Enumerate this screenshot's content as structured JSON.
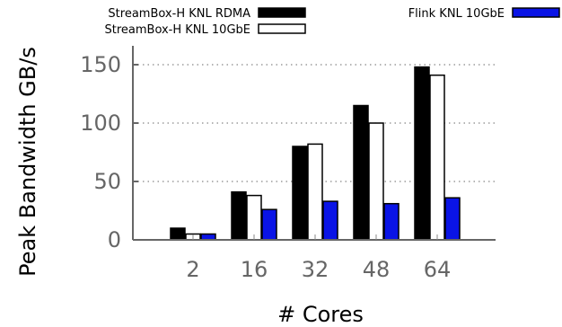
{
  "chart_data": {
    "type": "bar",
    "categories": [
      "2",
      "16",
      "32",
      "48",
      "64"
    ],
    "series": [
      {
        "name": "StreamBox-H KNL RDMA",
        "values": [
          10,
          41,
          80,
          115,
          148
        ],
        "color": "#000000",
        "fill": "#000000"
      },
      {
        "name": "StreamBox-H KNL 10GbE",
        "values": [
          5,
          38,
          82,
          100,
          141
        ],
        "color": "#000000",
        "fill": "#ffffff"
      },
      {
        "name": "Flink KNL 10GbE",
        "values": [
          5,
          26,
          33,
          31,
          36
        ],
        "color": "#000000",
        "fill": "#0a14e6"
      }
    ],
    "xlabel": "# Cores",
    "ylabel": "Peak Bandwidth GB/s",
    "ylim": [
      0,
      160
    ],
    "yticks": [
      "0",
      "50",
      "100",
      "150"
    ],
    "grid": "horizontal dotted",
    "legend": "top"
  }
}
